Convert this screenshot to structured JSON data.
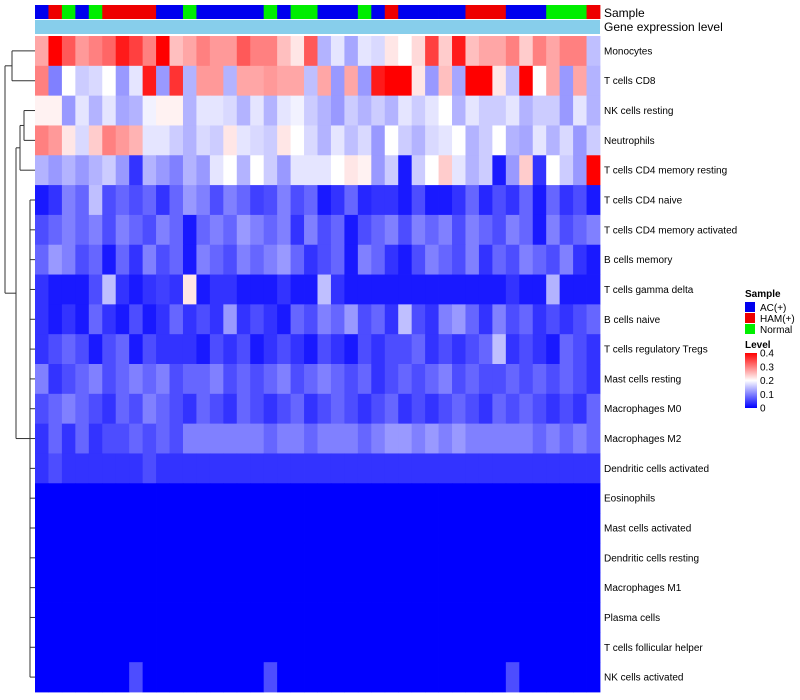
{
  "chart_data": {
    "type": "heatmap",
    "title": "",
    "annotation_labels": [
      "Sample",
      "Gene expression level"
    ],
    "colors": {
      "AC(+)": "#0000ee",
      "HAM(+)": "#ee0000",
      "Normal": "#00ee00",
      "expression_bar": "#87ceeb",
      "scale_low": "#0000ff",
      "scale_mid": "#ffffff",
      "scale_high": "#ff0000"
    },
    "sample_groups": [
      "AC(+)",
      "HAM(+)",
      "Normal",
      "AC(+)",
      "Normal",
      "HAM(+)",
      "HAM(+)",
      "HAM(+)",
      "HAM(+)",
      "AC(+)",
      "AC(+)",
      "Normal",
      "AC(+)",
      "AC(+)",
      "AC(+)",
      "AC(+)",
      "AC(+)",
      "Normal",
      "AC(+)",
      "Normal",
      "Normal",
      "AC(+)",
      "AC(+)",
      "AC(+)",
      "Normal",
      "AC(+)",
      "HAM(+)",
      "AC(+)",
      "AC(+)",
      "AC(+)",
      "AC(+)",
      "AC(+)",
      "HAM(+)",
      "HAM(+)",
      "HAM(+)",
      "AC(+)",
      "AC(+)",
      "AC(+)",
      "Normal",
      "Normal",
      "Normal",
      "HAM(+)"
    ],
    "rows": [
      "Monocytes",
      "T cells CD8",
      "NK cells resting",
      "Neutrophils",
      "T cells CD4 memory resting",
      "T cells CD4 naive",
      "T cells CD4 memory activated",
      "B cells memory",
      "T cells gamma delta",
      "B cells naive",
      "T cells regulatory  Tregs",
      "Mast cells resting",
      "Macrophages M0",
      "Macrophages M2",
      "Dendritic cells activated",
      "Eosinophils",
      "Mast cells activated",
      "Dendritic cells resting",
      "Macrophages M1",
      "Plasma cells",
      "T cells follicular helper",
      "NK cells activated"
    ],
    "values": [
      [
        0.27,
        0.4,
        0.33,
        0.28,
        0.3,
        0.32,
        0.38,
        0.35,
        0.3,
        0.4,
        0.25,
        0.27,
        0.3,
        0.28,
        0.28,
        0.33,
        0.3,
        0.3,
        0.25,
        0.22,
        0.33,
        0.14,
        0.18,
        0.13,
        0.18,
        0.17,
        0.22,
        0.2,
        0.23,
        0.35,
        0.24,
        0.38,
        0.25,
        0.27,
        0.27,
        0.3,
        0.24,
        0.3,
        0.27,
        0.3,
        0.3,
        0.15
      ],
      [
        0.3,
        0.1,
        0.2,
        0.16,
        0.17,
        0.2,
        0.12,
        0.18,
        0.38,
        0.12,
        0.36,
        0.14,
        0.28,
        0.28,
        0.14,
        0.27,
        0.27,
        0.28,
        0.27,
        0.27,
        0.15,
        0.27,
        0.12,
        0.27,
        0.12,
        0.38,
        0.4,
        0.4,
        0.22,
        0.12,
        0.25,
        0.13,
        0.4,
        0.4,
        0.22,
        0.15,
        0.4,
        0.2,
        0.27,
        0.12,
        0.27,
        0.14
      ],
      [
        0.21,
        0.21,
        0.12,
        0.18,
        0.14,
        0.18,
        0.13,
        0.14,
        0.19,
        0.21,
        0.21,
        0.14,
        0.18,
        0.18,
        0.17,
        0.14,
        0.18,
        0.14,
        0.18,
        0.19,
        0.16,
        0.14,
        0.12,
        0.16,
        0.14,
        0.16,
        0.14,
        0.18,
        0.16,
        0.18,
        0.2,
        0.14,
        0.18,
        0.16,
        0.16,
        0.18,
        0.14,
        0.16,
        0.16,
        0.12,
        0.18,
        0.14
      ],
      [
        0.3,
        0.28,
        0.22,
        0.17,
        0.24,
        0.3,
        0.28,
        0.26,
        0.18,
        0.18,
        0.16,
        0.14,
        0.17,
        0.16,
        0.22,
        0.18,
        0.17,
        0.16,
        0.22,
        0.2,
        0.17,
        0.14,
        0.18,
        0.15,
        0.17,
        0.12,
        0.2,
        0.16,
        0.14,
        0.17,
        0.18,
        0.2,
        0.14,
        0.16,
        0.2,
        0.14,
        0.13,
        0.18,
        0.14,
        0.17,
        0.12,
        0.16
      ],
      [
        0.14,
        0.12,
        0.14,
        0.12,
        0.14,
        0.16,
        0.12,
        0.04,
        0.14,
        0.12,
        0.1,
        0.14,
        0.12,
        0.18,
        0.2,
        0.14,
        0.2,
        0.16,
        0.12,
        0.18,
        0.18,
        0.18,
        0.2,
        0.22,
        0.21,
        0.12,
        0.16,
        0.02,
        0.16,
        0.2,
        0.24,
        0.18,
        0.14,
        0.16,
        0.02,
        0.12,
        0.24,
        0.04,
        0.2,
        0.16,
        0.12,
        0.4
      ],
      [
        0.02,
        0.04,
        0.1,
        0.08,
        0.15,
        0.06,
        0.08,
        0.06,
        0.08,
        0.04,
        0.08,
        0.12,
        0.1,
        0.06,
        0.1,
        0.08,
        0.05,
        0.06,
        0.1,
        0.06,
        0.08,
        0.02,
        0.04,
        0.08,
        0.03,
        0.04,
        0.04,
        0.02,
        0.06,
        0.02,
        0.02,
        0.04,
        0.08,
        0.03,
        0.06,
        0.04,
        0.08,
        0.02,
        0.08,
        0.04,
        0.06,
        0.02
      ],
      [
        0.06,
        0.08,
        0.1,
        0.08,
        0.1,
        0.06,
        0.1,
        0.08,
        0.06,
        0.1,
        0.08,
        0.02,
        0.08,
        0.1,
        0.08,
        0.12,
        0.1,
        0.08,
        0.1,
        0.04,
        0.1,
        0.06,
        0.08,
        0.02,
        0.06,
        0.08,
        0.1,
        0.06,
        0.1,
        0.08,
        0.1,
        0.06,
        0.1,
        0.08,
        0.06,
        0.1,
        0.08,
        0.02,
        0.1,
        0.06,
        0.08,
        0.1
      ],
      [
        0.08,
        0.12,
        0.1,
        0.06,
        0.08,
        0.02,
        0.08,
        0.04,
        0.1,
        0.06,
        0.08,
        0.02,
        0.1,
        0.08,
        0.06,
        0.1,
        0.08,
        0.1,
        0.12,
        0.08,
        0.04,
        0.06,
        0.08,
        0.02,
        0.1,
        0.08,
        0.04,
        0.02,
        0.06,
        0.1,
        0.08,
        0.06,
        0.1,
        0.04,
        0.08,
        0.06,
        0.1,
        0.08,
        0.06,
        0.1,
        0.04,
        0.02
      ],
      [
        0.04,
        0.02,
        0.02,
        0.02,
        0.06,
        0.15,
        0.04,
        0.02,
        0.04,
        0.05,
        0.04,
        0.22,
        0.02,
        0.04,
        0.04,
        0.02,
        0.02,
        0.02,
        0.04,
        0.02,
        0.02,
        0.15,
        0.04,
        0.02,
        0.02,
        0.02,
        0.02,
        0.02,
        0.02,
        0.02,
        0.02,
        0.02,
        0.02,
        0.02,
        0.02,
        0.04,
        0.02,
        0.02,
        0.14,
        0.02,
        0.02,
        0.02
      ],
      [
        0.04,
        0.02,
        0.04,
        0.02,
        0.08,
        0.04,
        0.02,
        0.06,
        0.02,
        0.04,
        0.08,
        0.04,
        0.06,
        0.04,
        0.12,
        0.04,
        0.06,
        0.04,
        0.02,
        0.08,
        0.06,
        0.1,
        0.08,
        0.12,
        0.06,
        0.08,
        0.04,
        0.15,
        0.06,
        0.04,
        0.1,
        0.12,
        0.08,
        0.04,
        0.1,
        0.06,
        0.08,
        0.04,
        0.06,
        0.04,
        0.06,
        0.08
      ],
      [
        0.04,
        0.06,
        0.08,
        0.06,
        0.02,
        0.06,
        0.08,
        0.02,
        0.06,
        0.04,
        0.04,
        0.04,
        0.02,
        0.06,
        0.04,
        0.06,
        0.02,
        0.04,
        0.06,
        0.04,
        0.02,
        0.06,
        0.04,
        0.02,
        0.06,
        0.04,
        0.06,
        0.06,
        0.08,
        0.04,
        0.06,
        0.04,
        0.06,
        0.08,
        0.15,
        0.04,
        0.06,
        0.04,
        0.02,
        0.08,
        0.06,
        0.04
      ],
      [
        0.1,
        0.04,
        0.06,
        0.08,
        0.1,
        0.06,
        0.08,
        0.1,
        0.08,
        0.1,
        0.06,
        0.08,
        0.08,
        0.1,
        0.06,
        0.08,
        0.06,
        0.08,
        0.1,
        0.06,
        0.08,
        0.1,
        0.08,
        0.06,
        0.08,
        0.04,
        0.06,
        0.08,
        0.06,
        0.08,
        0.1,
        0.06,
        0.08,
        0.06,
        0.06,
        0.08,
        0.06,
        0.08,
        0.06,
        0.08,
        0.06,
        0.04
      ],
      [
        0.06,
        0.08,
        0.1,
        0.08,
        0.06,
        0.04,
        0.08,
        0.06,
        0.1,
        0.08,
        0.06,
        0.04,
        0.08,
        0.06,
        0.04,
        0.08,
        0.06,
        0.04,
        0.06,
        0.08,
        0.04,
        0.06,
        0.08,
        0.06,
        0.04,
        0.06,
        0.08,
        0.04,
        0.06,
        0.04,
        0.06,
        0.08,
        0.06,
        0.04,
        0.08,
        0.06,
        0.08,
        0.06,
        0.04,
        0.06,
        0.04,
        0.08
      ],
      [
        0.04,
        0.08,
        0.04,
        0.08,
        0.04,
        0.06,
        0.06,
        0.08,
        0.06,
        0.08,
        0.06,
        0.1,
        0.1,
        0.1,
        0.1,
        0.1,
        0.1,
        0.08,
        0.1,
        0.1,
        0.08,
        0.1,
        0.1,
        0.1,
        0.08,
        0.1,
        0.12,
        0.12,
        0.1,
        0.12,
        0.1,
        0.12,
        0.1,
        0.1,
        0.1,
        0.1,
        0.1,
        0.08,
        0.1,
        0.08,
        0.1,
        0.08
      ],
      [
        0.04,
        0.06,
        0.04,
        0.04,
        0.04,
        0.04,
        0.04,
        0.04,
        0.06,
        0.04,
        0.04,
        0.04,
        0.04,
        0.04,
        0.04,
        0.04,
        0.04,
        0.04,
        0.04,
        0.04,
        0.04,
        0.04,
        0.04,
        0.04,
        0.04,
        0.04,
        0.04,
        0.04,
        0.04,
        0.04,
        0.04,
        0.04,
        0.04,
        0.04,
        0.04,
        0.04,
        0.04,
        0.04,
        0.04,
        0.04,
        0.04,
        0.04
      ],
      [
        0.0,
        0.0,
        0.0,
        0.0,
        0.0,
        0.0,
        0.0,
        0.0,
        0.0,
        0.0,
        0.0,
        0.0,
        0.0,
        0.0,
        0.0,
        0.0,
        0.0,
        0.0,
        0.0,
        0.0,
        0.0,
        0.0,
        0.0,
        0.0,
        0.0,
        0.0,
        0.0,
        0.0,
        0.0,
        0.0,
        0.0,
        0.0,
        0.0,
        0.0,
        0.0,
        0.0,
        0.0,
        0.0,
        0.0,
        0.0,
        0.0,
        0.0
      ],
      [
        0.0,
        0.0,
        0.0,
        0.0,
        0.0,
        0.0,
        0.0,
        0.0,
        0.0,
        0.0,
        0.0,
        0.0,
        0.0,
        0.0,
        0.0,
        0.0,
        0.0,
        0.0,
        0.0,
        0.0,
        0.0,
        0.0,
        0.0,
        0.0,
        0.0,
        0.0,
        0.0,
        0.0,
        0.0,
        0.0,
        0.0,
        0.0,
        0.0,
        0.0,
        0.0,
        0.0,
        0.0,
        0.0,
        0.0,
        0.0,
        0.0,
        0.0
      ],
      [
        0.0,
        0.0,
        0.0,
        0.0,
        0.0,
        0.0,
        0.0,
        0.0,
        0.0,
        0.0,
        0.0,
        0.0,
        0.0,
        0.0,
        0.0,
        0.0,
        0.0,
        0.0,
        0.0,
        0.0,
        0.0,
        0.0,
        0.0,
        0.0,
        0.0,
        0.0,
        0.0,
        0.0,
        0.0,
        0.0,
        0.0,
        0.0,
        0.0,
        0.0,
        0.0,
        0.0,
        0.0,
        0.0,
        0.0,
        0.0,
        0.0,
        0.0
      ],
      [
        0.0,
        0.0,
        0.0,
        0.0,
        0.0,
        0.0,
        0.0,
        0.0,
        0.0,
        0.0,
        0.0,
        0.0,
        0.0,
        0.0,
        0.0,
        0.0,
        0.0,
        0.0,
        0.0,
        0.0,
        0.0,
        0.0,
        0.0,
        0.0,
        0.0,
        0.0,
        0.0,
        0.0,
        0.0,
        0.0,
        0.0,
        0.0,
        0.0,
        0.0,
        0.0,
        0.0,
        0.0,
        0.0,
        0.0,
        0.0,
        0.0,
        0.0
      ],
      [
        0.0,
        0.0,
        0.0,
        0.0,
        0.0,
        0.0,
        0.0,
        0.0,
        0.0,
        0.0,
        0.0,
        0.0,
        0.0,
        0.0,
        0.0,
        0.0,
        0.0,
        0.0,
        0.0,
        0.0,
        0.0,
        0.0,
        0.0,
        0.0,
        0.0,
        0.0,
        0.0,
        0.0,
        0.0,
        0.0,
        0.0,
        0.0,
        0.0,
        0.0,
        0.0,
        0.0,
        0.0,
        0.0,
        0.0,
        0.0,
        0.0,
        0.0
      ],
      [
        0.0,
        0.0,
        0.0,
        0.0,
        0.0,
        0.0,
        0.0,
        0.0,
        0.0,
        0.0,
        0.0,
        0.0,
        0.0,
        0.0,
        0.0,
        0.0,
        0.0,
        0.0,
        0.0,
        0.0,
        0.0,
        0.0,
        0.0,
        0.0,
        0.0,
        0.0,
        0.0,
        0.0,
        0.0,
        0.0,
        0.0,
        0.0,
        0.0,
        0.0,
        0.0,
        0.0,
        0.0,
        0.0,
        0.0,
        0.0,
        0.0,
        0.0
      ],
      [
        0.0,
        0.0,
        0.0,
        0.0,
        0.0,
        0.0,
        0.0,
        0.06,
        0.0,
        0.0,
        0.0,
        0.0,
        0.0,
        0.0,
        0.0,
        0.0,
        0.0,
        0.06,
        0.0,
        0.0,
        0.0,
        0.0,
        0.0,
        0.0,
        0.0,
        0.0,
        0.0,
        0.0,
        0.0,
        0.0,
        0.0,
        0.0,
        0.0,
        0.0,
        0.0,
        0.06,
        0.0,
        0.0,
        0.0,
        0.0,
        0.0,
        0.0
      ]
    ],
    "legend": {
      "sample_title": "Sample",
      "sample_entries": [
        "AC(+)",
        "HAM(+)",
        "Normal"
      ],
      "level_title": "Level",
      "level_ticks": [
        "0.4",
        "0.3",
        "0.2",
        "0.1",
        "0"
      ],
      "level_range": [
        0,
        0.4
      ]
    }
  }
}
